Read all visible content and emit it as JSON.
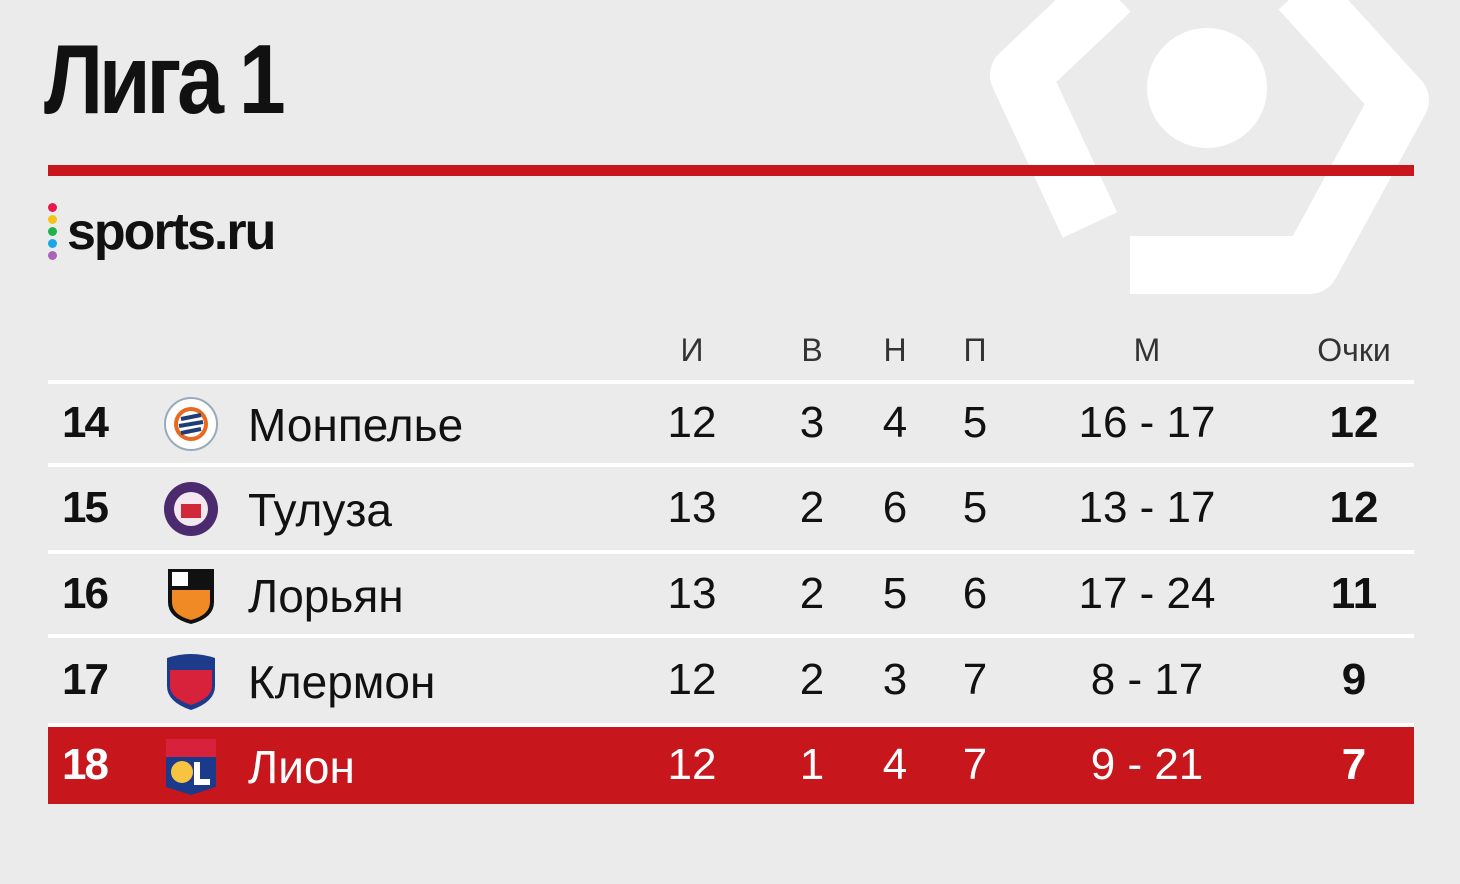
{
  "title": "Лига 1",
  "brand": "sports.ru",
  "colors": {
    "accent": "#c8161d",
    "background": "#ebebeb",
    "dots": [
      "#e8194f",
      "#f6c315",
      "#1fb24a",
      "#1aa7e8",
      "#a864b8"
    ]
  },
  "columns": {
    "games": "И",
    "wins": "В",
    "draws": "Н",
    "losses": "П",
    "goals": "М",
    "points": "Очки"
  },
  "rows": [
    {
      "pos": "14",
      "team": "Монпелье",
      "logo": "montpellier-crest",
      "games": "12",
      "wins": "3",
      "draws": "4",
      "losses": "5",
      "goals": "16 - 17",
      "points": "12"
    },
    {
      "pos": "15",
      "team": "Тулуза",
      "logo": "toulouse-crest",
      "games": "13",
      "wins": "2",
      "draws": "6",
      "losses": "5",
      "goals": "13 - 17",
      "points": "12"
    },
    {
      "pos": "16",
      "team": "Лорьян",
      "logo": "lorient-crest",
      "games": "13",
      "wins": "2",
      "draws": "5",
      "losses": "6",
      "goals": "17 - 24",
      "points": "11"
    },
    {
      "pos": "17",
      "team": "Клермон",
      "logo": "clermont-crest",
      "games": "12",
      "wins": "2",
      "draws": "3",
      "losses": "7",
      "goals": "8 - 17",
      "points": "9"
    },
    {
      "pos": "18",
      "team": "Лион",
      "logo": "lyon-crest",
      "games": "12",
      "wins": "1",
      "draws": "4",
      "losses": "7",
      "goals": "9 - 21",
      "points": "7",
      "highlighted": true
    }
  ]
}
